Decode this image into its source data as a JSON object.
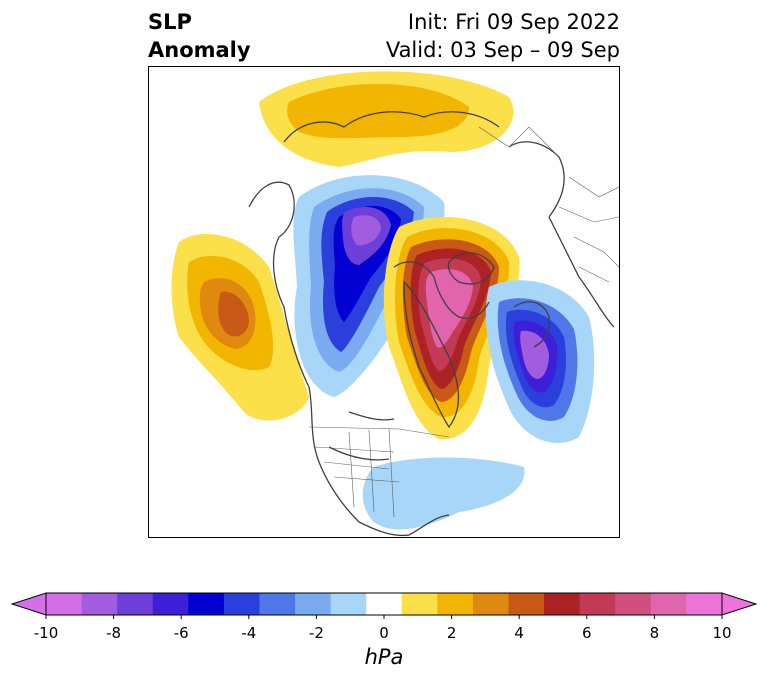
{
  "title": {
    "left_line1": "SLP",
    "left_line2": "Anomaly",
    "right_line1": "Init: Fri 09 Sep 2022",
    "right_line2": "Valid: 03 Sep – 09 Sep"
  },
  "colorbar": {
    "label": "hPa",
    "ticks": [
      "-10",
      "-8",
      "-6",
      "-4",
      "-2",
      "0",
      "2",
      "4",
      "6",
      "8",
      "10"
    ],
    "colors": [
      "#d56fe8",
      "#a15ce0",
      "#6e3fd8",
      "#3c1fd6",
      "#0000d2",
      "#2a3fdc",
      "#4f77e8",
      "#7aaaf0",
      "#a7d6f8",
      "#ffffff",
      "#fbe04a",
      "#f3b600",
      "#df8a0e",
      "#c85a16",
      "#ad2224",
      "#c33a55",
      "#d04f7f",
      "#e065ad",
      "#ef74da"
    ],
    "extend_min_color": "#d56fe8",
    "extend_max_color": "#ef74da"
  }
}
